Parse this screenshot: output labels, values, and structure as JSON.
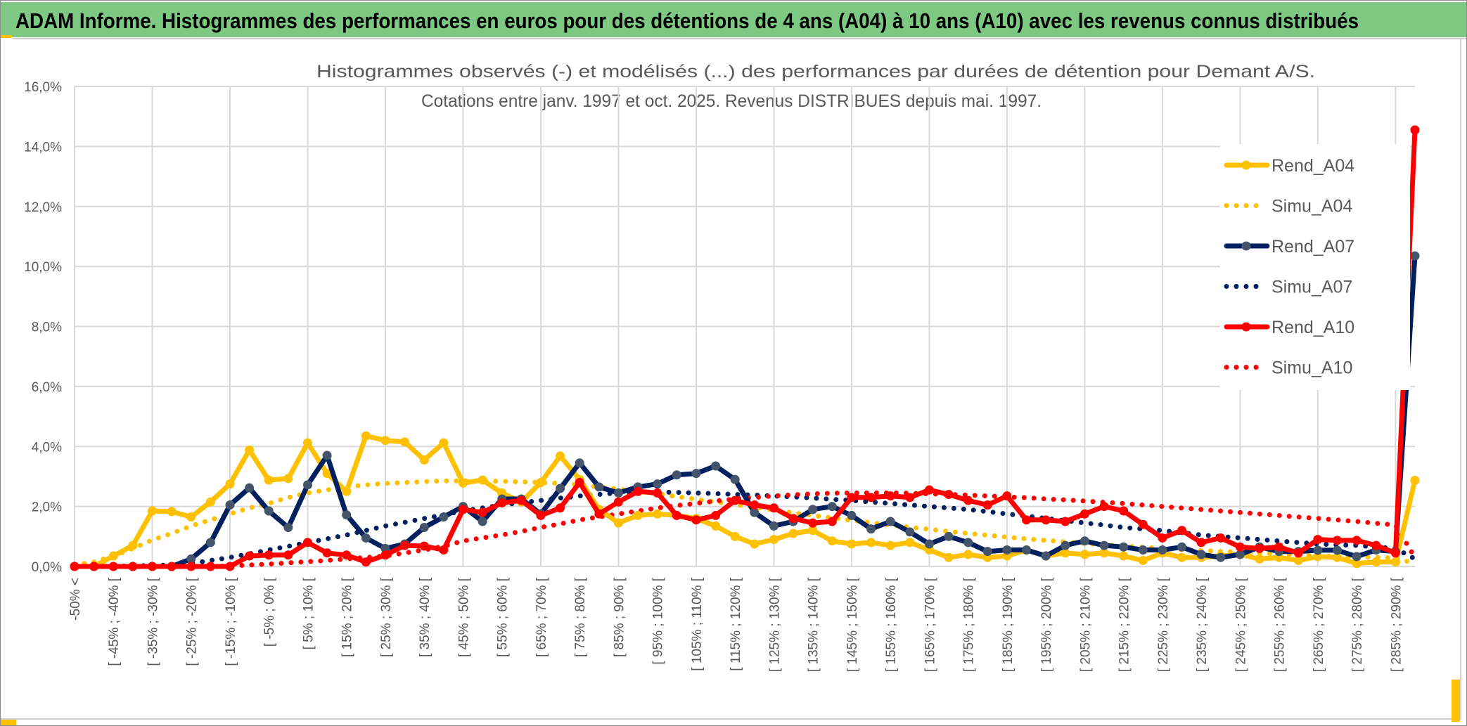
{
  "header": {
    "title": "ADAM Informe. Histogrammes des performances en euros pour des détentions de 4 ans (A04) à 10 ans (A10) avec les revenus connus distribués",
    "background_color": "#7dc882"
  },
  "chart_data": {
    "type": "line",
    "title_line1": "Histogrammes observés (-) et modélisés (...) des performances par durées de détention pour Demant A/S.",
    "title_line2": "Cotations entre janv. 1997 et oct. 2025. Revenus DISTRIBUES depuis mai. 1997.",
    "xlabel": "",
    "ylabel": "",
    "ylim": [
      0,
      16
    ],
    "y_ticks": [
      "0,0%",
      "2,0%",
      "4,0%",
      "6,0%",
      "8,0%",
      "10,0%",
      "12,0%",
      "14,0%",
      "16,0%"
    ],
    "y_unit": "%",
    "grid": true,
    "legend_position": "right",
    "category_count": 70,
    "tick_labels_every_other_category": [
      "-50% <",
      "[ -45% ; -40% [",
      "[ -35% ; -30% [",
      "[ -25% ; -20% [",
      "[ -15% ; -10% [",
      "[ -5% ; 0% [",
      "[ 5% ; 10% [",
      "[ 15% ; 20% [",
      "[ 25% ; 30% [",
      "[ 35% ; 40% [",
      "[ 45% ; 50% [",
      "[ 55% ; 60% [",
      "[ 65% ; 70% [",
      "[ 75% ; 80% [",
      "[ 85% ; 90% [",
      "[ 95% ; 100% [",
      "[ 105% ; 110% [",
      "[ 115% ; 120% [",
      "[ 125% ; 130% [",
      "[ 135% ; 140% [",
      "[ 145% ; 150% [",
      "[ 155% ; 160% [",
      "[ 165% ; 170% [",
      "[ 175% ; 180% [",
      "[ 185% ; 190% [",
      "[ 195% ; 200% [",
      "[ 205% ; 210% [",
      "[ 215% ; 220% [",
      "[ 225% ; 230% [",
      "[ 235% ; 240% [",
      "[ 245% ; 250% [",
      "[ 255% ; 260% [",
      "[ 265% ; 270% [",
      "[ 275% ; 280% [",
      "[ 285% ; 290% ["
    ],
    "series": [
      {
        "name": "Rend_A04",
        "style": "solid-marker",
        "color": "#ffc000",
        "marker_color": "#ffc000",
        "values": [
          0,
          0,
          0.35,
          0.7,
          1.85,
          1.83,
          1.65,
          2.15,
          2.75,
          3.88,
          2.88,
          2.93,
          4.12,
          3.1,
          2.5,
          4.35,
          4.2,
          4.15,
          3.55,
          4.12,
          2.78,
          2.88,
          2.45,
          2.15,
          2.8,
          3.68,
          2.9,
          1.9,
          1.45,
          1.7,
          1.75,
          1.7,
          1.6,
          1.35,
          1.0,
          0.75,
          0.9,
          1.1,
          1.2,
          0.85,
          0.75,
          0.8,
          0.7,
          0.8,
          0.55,
          0.3,
          0.4,
          0.3,
          0.35,
          0.55,
          0.35,
          0.45,
          0.4,
          0.45,
          0.35,
          0.2,
          0.45,
          0.3,
          0.3,
          0.35,
          0.4,
          0.25,
          0.3,
          0.2,
          0.33,
          0.3,
          0.1,
          0.15,
          0.15,
          2.87
        ]
      },
      {
        "name": "Simu_A04",
        "style": "dotted",
        "color": "#ffc000",
        "values": [
          0.05,
          0.15,
          0.35,
          0.6,
          0.88,
          1.1,
          1.35,
          1.55,
          1.75,
          1.95,
          2.1,
          2.3,
          2.45,
          2.55,
          2.65,
          2.72,
          2.77,
          2.8,
          2.83,
          2.85,
          2.85,
          2.85,
          2.84,
          2.82,
          2.8,
          2.77,
          2.72,
          2.65,
          2.58,
          2.5,
          2.42,
          2.33,
          2.24,
          2.15,
          2.06,
          1.97,
          1.88,
          1.79,
          1.7,
          1.62,
          1.54,
          1.46,
          1.38,
          1.31,
          1.24,
          1.17,
          1.1,
          1.04,
          0.98,
          0.92,
          0.87,
          0.82,
          0.77,
          0.72,
          0.68,
          0.64,
          0.6,
          0.56,
          0.53,
          0.5,
          0.47,
          0.44,
          0.41,
          0.39,
          0.36,
          0.34,
          0.32,
          0.3,
          0.28,
          0.1
        ]
      },
      {
        "name": "Rend_A07",
        "style": "solid-marker",
        "color": "#002060",
        "marker_color": "#44546a",
        "values": [
          0,
          0,
          0,
          0,
          0,
          0,
          0.25,
          0.8,
          2.05,
          2.62,
          1.85,
          1.3,
          2.72,
          3.7,
          1.72,
          0.95,
          0.6,
          0.75,
          1.3,
          1.65,
          2.0,
          1.5,
          2.25,
          2.25,
          1.75,
          2.6,
          3.45,
          2.65,
          2.45,
          2.65,
          2.75,
          3.05,
          3.1,
          3.35,
          2.9,
          1.8,
          1.35,
          1.5,
          1.9,
          2.0,
          1.7,
          1.25,
          1.5,
          1.15,
          0.75,
          1.0,
          0.8,
          0.5,
          0.55,
          0.55,
          0.35,
          0.7,
          0.85,
          0.7,
          0.65,
          0.55,
          0.55,
          0.65,
          0.4,
          0.3,
          0.4,
          0.65,
          0.5,
          0.5,
          0.54,
          0.54,
          0.33,
          0.55,
          0.5,
          10.35
        ]
      },
      {
        "name": "Simu_A07",
        "style": "dotted",
        "color": "#002060",
        "values": [
          0,
          0,
          0,
          0.02,
          0.03,
          0.05,
          0.1,
          0.2,
          0.3,
          0.42,
          0.55,
          0.67,
          0.8,
          0.92,
          1.05,
          1.2,
          1.35,
          1.47,
          1.6,
          1.72,
          1.85,
          1.95,
          2.05,
          2.13,
          2.2,
          2.28,
          2.35,
          2.4,
          2.45,
          2.47,
          2.48,
          2.47,
          2.45,
          2.43,
          2.4,
          2.38,
          2.35,
          2.32,
          2.28,
          2.24,
          2.2,
          2.15,
          2.1,
          2.05,
          2.0,
          1.95,
          1.9,
          1.83,
          1.75,
          1.68,
          1.6,
          1.53,
          1.45,
          1.38,
          1.3,
          1.25,
          1.2,
          1.12,
          1.05,
          1.0,
          0.95,
          0.9,
          0.85,
          0.8,
          0.75,
          0.72,
          0.7,
          0.65,
          0.6,
          0.25
        ]
      },
      {
        "name": "Rend_A10",
        "style": "solid-marker",
        "color": "#ff0000",
        "marker_color": "#ff0000",
        "values": [
          0,
          0,
          0,
          0,
          0,
          0,
          0,
          0,
          0,
          0.35,
          0.38,
          0.38,
          0.8,
          0.45,
          0.38,
          0.15,
          0.38,
          0.7,
          0.68,
          0.55,
          1.9,
          1.8,
          2.12,
          2.2,
          1.7,
          1.95,
          2.8,
          1.75,
          2.15,
          2.5,
          2.45,
          1.7,
          1.55,
          1.7,
          2.2,
          2.05,
          1.95,
          1.6,
          1.45,
          1.5,
          2.3,
          2.3,
          2.35,
          2.3,
          2.55,
          2.4,
          2.2,
          2.05,
          2.35,
          1.55,
          1.55,
          1.5,
          1.75,
          2.0,
          1.85,
          1.4,
          0.95,
          1.2,
          0.8,
          0.95,
          0.65,
          0.6,
          0.65,
          0.45,
          0.9,
          0.87,
          0.87,
          0.7,
          0.45,
          14.55
        ]
      },
      {
        "name": "Simu_A10",
        "style": "dotted",
        "color": "#ff0000",
        "values": [
          0,
          0,
          0,
          0,
          0,
          0,
          0,
          0,
          0.02,
          0.05,
          0.08,
          0.12,
          0.16,
          0.2,
          0.25,
          0.3,
          0.35,
          0.45,
          0.55,
          0.67,
          0.85,
          0.95,
          1.05,
          1.17,
          1.3,
          1.42,
          1.55,
          1.65,
          1.75,
          1.85,
          1.95,
          2.03,
          2.1,
          2.18,
          2.25,
          2.3,
          2.35,
          2.39,
          2.42,
          2.44,
          2.45,
          2.45,
          2.45,
          2.44,
          2.42,
          2.4,
          2.38,
          2.35,
          2.32,
          2.29,
          2.25,
          2.22,
          2.18,
          2.14,
          2.1,
          2.05,
          2.0,
          1.95,
          1.9,
          1.85,
          1.8,
          1.75,
          1.7,
          1.65,
          1.6,
          1.55,
          1.5,
          1.44,
          1.38,
          0.3
        ]
      }
    ]
  }
}
